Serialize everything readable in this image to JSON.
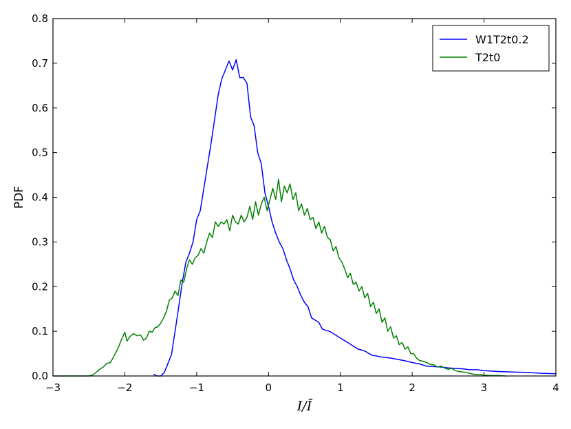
{
  "chart_data": {
    "type": "line",
    "title": "",
    "xlabel": "I/Ī",
    "ylabel": "PDF",
    "xlim": [
      -3,
      4
    ],
    "ylim": [
      0,
      0.8
    ],
    "x_ticks": [
      "−3",
      "−2",
      "−1",
      "0",
      "1",
      "2",
      "3",
      "4"
    ],
    "y_ticks": [
      "0.0",
      "0.1",
      "0.2",
      "0.3",
      "0.4",
      "0.5",
      "0.6",
      "0.7",
      "0.8"
    ],
    "grid": false,
    "legend": "top-right",
    "series": [
      {
        "name": "W1T2t0.2",
        "color": "#0000ff",
        "points": [
          [
            -1.6,
            0.004
          ],
          [
            -1.55,
            0.0
          ],
          [
            -1.5,
            0.0
          ],
          [
            -1.45,
            0.008
          ],
          [
            -1.4,
            0.028
          ],
          [
            -1.35,
            0.048
          ],
          [
            -1.3,
            0.1
          ],
          [
            -1.25,
            0.155
          ],
          [
            -1.2,
            0.21
          ],
          [
            -1.15,
            0.255
          ],
          [
            -1.1,
            0.275
          ],
          [
            -1.05,
            0.3
          ],
          [
            -1.0,
            0.35
          ],
          [
            -0.95,
            0.37
          ],
          [
            -0.9,
            0.42
          ],
          [
            -0.85,
            0.47
          ],
          [
            -0.8,
            0.52
          ],
          [
            -0.75,
            0.575
          ],
          [
            -0.7,
            0.63
          ],
          [
            -0.65,
            0.665
          ],
          [
            -0.6,
            0.685
          ],
          [
            -0.55,
            0.705
          ],
          [
            -0.5,
            0.685
          ],
          [
            -0.45,
            0.708
          ],
          [
            -0.4,
            0.668
          ],
          [
            -0.35,
            0.668
          ],
          [
            -0.3,
            0.655
          ],
          [
            -0.25,
            0.58
          ],
          [
            -0.2,
            0.56
          ],
          [
            -0.15,
            0.5
          ],
          [
            -0.1,
            0.475
          ],
          [
            -0.05,
            0.41
          ],
          [
            0.0,
            0.38
          ],
          [
            0.05,
            0.345
          ],
          [
            0.1,
            0.32
          ],
          [
            0.15,
            0.3
          ],
          [
            0.2,
            0.285
          ],
          [
            0.25,
            0.26
          ],
          [
            0.3,
            0.24
          ],
          [
            0.35,
            0.215
          ],
          [
            0.4,
            0.2
          ],
          [
            0.45,
            0.18
          ],
          [
            0.5,
            0.165
          ],
          [
            0.55,
            0.155
          ],
          [
            0.6,
            0.13
          ],
          [
            0.65,
            0.125
          ],
          [
            0.7,
            0.12
          ],
          [
            0.75,
            0.105
          ],
          [
            0.8,
            0.102
          ],
          [
            0.85,
            0.1
          ],
          [
            0.9,
            0.095
          ],
          [
            0.95,
            0.09
          ],
          [
            1.0,
            0.085
          ],
          [
            1.05,
            0.08
          ],
          [
            1.1,
            0.075
          ],
          [
            1.15,
            0.07
          ],
          [
            1.2,
            0.065
          ],
          [
            1.25,
            0.06
          ],
          [
            1.3,
            0.058
          ],
          [
            1.35,
            0.055
          ],
          [
            1.4,
            0.05
          ],
          [
            1.45,
            0.046
          ],
          [
            1.5,
            0.045
          ],
          [
            1.55,
            0.043
          ],
          [
            1.6,
            0.042
          ],
          [
            1.7,
            0.04
          ],
          [
            1.8,
            0.037
          ],
          [
            1.9,
            0.034
          ],
          [
            2.0,
            0.03
          ],
          [
            2.1,
            0.027
          ],
          [
            2.2,
            0.022
          ],
          [
            2.3,
            0.021
          ],
          [
            2.4,
            0.02
          ],
          [
            2.5,
            0.018
          ],
          [
            2.6,
            0.017
          ],
          [
            2.7,
            0.016
          ],
          [
            2.8,
            0.014
          ],
          [
            2.9,
            0.014
          ],
          [
            3.0,
            0.012
          ],
          [
            3.2,
            0.01
          ],
          [
            3.4,
            0.009
          ],
          [
            3.6,
            0.008
          ],
          [
            3.8,
            0.006
          ],
          [
            4.0,
            0.005
          ]
        ]
      },
      {
        "name": "T2t0",
        "color": "#008000",
        "points": [
          [
            -3.0,
            0.0
          ],
          [
            -2.8,
            0.0
          ],
          [
            -2.6,
            0.0
          ],
          [
            -2.5,
            0.0
          ],
          [
            -2.45,
            0.002
          ],
          [
            -2.4,
            0.008
          ],
          [
            -2.35,
            0.015
          ],
          [
            -2.3,
            0.02
          ],
          [
            -2.25,
            0.028
          ],
          [
            -2.2,
            0.03
          ],
          [
            -2.15,
            0.045
          ],
          [
            -2.1,
            0.06
          ],
          [
            -2.05,
            0.08
          ],
          [
            -2.0,
            0.098
          ],
          [
            -1.97,
            0.078
          ],
          [
            -1.93,
            0.088
          ],
          [
            -1.88,
            0.095
          ],
          [
            -1.83,
            0.09
          ],
          [
            -1.78,
            0.092
          ],
          [
            -1.74,
            0.08
          ],
          [
            -1.7,
            0.085
          ],
          [
            -1.66,
            0.1
          ],
          [
            -1.62,
            0.098
          ],
          [
            -1.58,
            0.108
          ],
          [
            -1.54,
            0.11
          ],
          [
            -1.5,
            0.118
          ],
          [
            -1.46,
            0.13
          ],
          [
            -1.42,
            0.145
          ],
          [
            -1.38,
            0.17
          ],
          [
            -1.34,
            0.175
          ],
          [
            -1.3,
            0.19
          ],
          [
            -1.26,
            0.18
          ],
          [
            -1.22,
            0.215
          ],
          [
            -1.18,
            0.21
          ],
          [
            -1.14,
            0.24
          ],
          [
            -1.1,
            0.26
          ],
          [
            -1.06,
            0.25
          ],
          [
            -1.02,
            0.265
          ],
          [
            -0.98,
            0.27
          ],
          [
            -0.94,
            0.285
          ],
          [
            -0.9,
            0.275
          ],
          [
            -0.86,
            0.3
          ],
          [
            -0.82,
            0.32
          ],
          [
            -0.78,
            0.31
          ],
          [
            -0.74,
            0.345
          ],
          [
            -0.7,
            0.335
          ],
          [
            -0.66,
            0.345
          ],
          [
            -0.62,
            0.34
          ],
          [
            -0.58,
            0.35
          ],
          [
            -0.54,
            0.325
          ],
          [
            -0.5,
            0.36
          ],
          [
            -0.46,
            0.345
          ],
          [
            -0.42,
            0.34
          ],
          [
            -0.38,
            0.36
          ],
          [
            -0.34,
            0.345
          ],
          [
            -0.3,
            0.355
          ],
          [
            -0.26,
            0.38
          ],
          [
            -0.22,
            0.35
          ],
          [
            -0.18,
            0.39
          ],
          [
            -0.14,
            0.36
          ],
          [
            -0.1,
            0.385
          ],
          [
            -0.06,
            0.4
          ],
          [
            -0.02,
            0.37
          ],
          [
            0.02,
            0.395
          ],
          [
            0.06,
            0.42
          ],
          [
            0.1,
            0.395
          ],
          [
            0.14,
            0.44
          ],
          [
            0.18,
            0.39
          ],
          [
            0.22,
            0.425
          ],
          [
            0.26,
            0.41
          ],
          [
            0.3,
            0.43
          ],
          [
            0.34,
            0.395
          ],
          [
            0.38,
            0.41
          ],
          [
            0.42,
            0.37
          ],
          [
            0.46,
            0.385
          ],
          [
            0.5,
            0.36
          ],
          [
            0.54,
            0.375
          ],
          [
            0.58,
            0.35
          ],
          [
            0.62,
            0.355
          ],
          [
            0.66,
            0.33
          ],
          [
            0.7,
            0.345
          ],
          [
            0.74,
            0.32
          ],
          [
            0.78,
            0.335
          ],
          [
            0.82,
            0.31
          ],
          [
            0.86,
            0.305
          ],
          [
            0.9,
            0.28
          ],
          [
            0.94,
            0.29
          ],
          [
            0.98,
            0.265
          ],
          [
            1.02,
            0.255
          ],
          [
            1.06,
            0.24
          ],
          [
            1.1,
            0.22
          ],
          [
            1.14,
            0.23
          ],
          [
            1.18,
            0.205
          ],
          [
            1.22,
            0.21
          ],
          [
            1.26,
            0.19
          ],
          [
            1.3,
            0.2
          ],
          [
            1.34,
            0.175
          ],
          [
            1.38,
            0.185
          ],
          [
            1.42,
            0.155
          ],
          [
            1.46,
            0.165
          ],
          [
            1.5,
            0.14
          ],
          [
            1.54,
            0.15
          ],
          [
            1.58,
            0.12
          ],
          [
            1.62,
            0.13
          ],
          [
            1.66,
            0.1
          ],
          [
            1.7,
            0.11
          ],
          [
            1.74,
            0.085
          ],
          [
            1.78,
            0.09
          ],
          [
            1.82,
            0.07
          ],
          [
            1.86,
            0.075
          ],
          [
            1.9,
            0.06
          ],
          [
            1.94,
            0.065
          ],
          [
            1.98,
            0.05
          ],
          [
            2.02,
            0.05
          ],
          [
            2.06,
            0.04
          ],
          [
            2.1,
            0.035
          ],
          [
            2.15,
            0.033
          ],
          [
            2.2,
            0.03
          ],
          [
            2.25,
            0.026
          ],
          [
            2.3,
            0.025
          ],
          [
            2.35,
            0.02
          ],
          [
            2.4,
            0.022
          ],
          [
            2.45,
            0.018
          ],
          [
            2.5,
            0.015
          ],
          [
            2.55,
            0.017
          ],
          [
            2.6,
            0.012
          ],
          [
            2.65,
            0.01
          ],
          [
            2.7,
            0.009
          ],
          [
            2.75,
            0.008
          ],
          [
            2.8,
            0.006
          ],
          [
            2.85,
            0.004
          ],
          [
            2.9,
            0.003
          ],
          [
            2.95,
            0.003
          ],
          [
            3.0,
            0.002
          ],
          [
            3.1,
            0.001
          ],
          [
            3.2,
            0.001
          ],
          [
            3.3,
            0.0
          ]
        ]
      }
    ]
  }
}
